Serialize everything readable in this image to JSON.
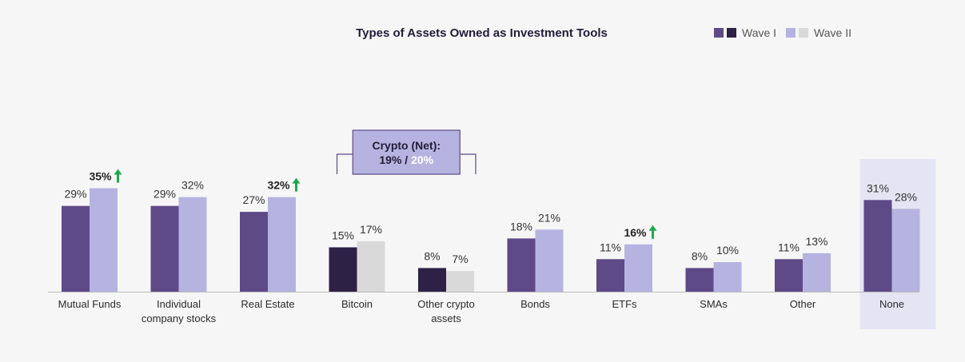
{
  "chart_data": {
    "type": "bar",
    "title": "Types of Assets Owned as Investment Tools",
    "categories": [
      "Mutual Funds",
      "Individual company stocks",
      "Real Estate",
      "Bitcoin",
      "Other crypto assets",
      "Bonds",
      "ETFs",
      "SMAs",
      "Other",
      "None"
    ],
    "category_lines": [
      [
        "Mutual Funds"
      ],
      [
        "Individual",
        "company stocks"
      ],
      [
        "Real Estate"
      ],
      [
        "Bitcoin"
      ],
      [
        "Other crypto",
        "assets"
      ],
      [
        "Bonds"
      ],
      [
        "ETFs"
      ],
      [
        "SMAs"
      ],
      [
        "Other"
      ],
      [
        "None"
      ]
    ],
    "series": [
      {
        "name": "Wave I",
        "values": [
          29,
          29,
          27,
          15,
          8,
          18,
          11,
          8,
          11,
          31
        ],
        "labels": [
          "29%",
          "29%",
          "27%",
          "15%",
          "8%",
          "18%",
          "11%",
          "8%",
          "11%",
          "31%"
        ]
      },
      {
        "name": "Wave II",
        "values": [
          35,
          32,
          32,
          17,
          7,
          21,
          16,
          10,
          13,
          28
        ],
        "labels": [
          "35%",
          "32%",
          "32%",
          "17%",
          "7%",
          "21%",
          "16%",
          "10%",
          "13%",
          "28%"
        ]
      }
    ],
    "significant_increase": [
      "Mutual Funds",
      "Real Estate",
      "ETFs"
    ],
    "crypto_categories": [
      "Bitcoin",
      "Other crypto assets"
    ],
    "highlighted_category": "None",
    "ylim": [
      0,
      42
    ],
    "legend_position": "top-right",
    "annotation": {
      "title": "Crypto (Net):",
      "wave1": "19%",
      "separator": "/",
      "wave2": "20%"
    },
    "colors": {
      "wave1": "#5d4a87",
      "wave2": "#b6b3e0",
      "crypto_wave1": "#2d2146",
      "crypto_wave2": "#d9d9d9",
      "arrow": "#1ea84a",
      "highlight_bg": "#e5e4f3",
      "annotation_bg": "#b6b3e0",
      "annotation_border": "#5d4a87"
    }
  },
  "legend": {
    "wave1": "Wave I",
    "wave2": "Wave II"
  }
}
